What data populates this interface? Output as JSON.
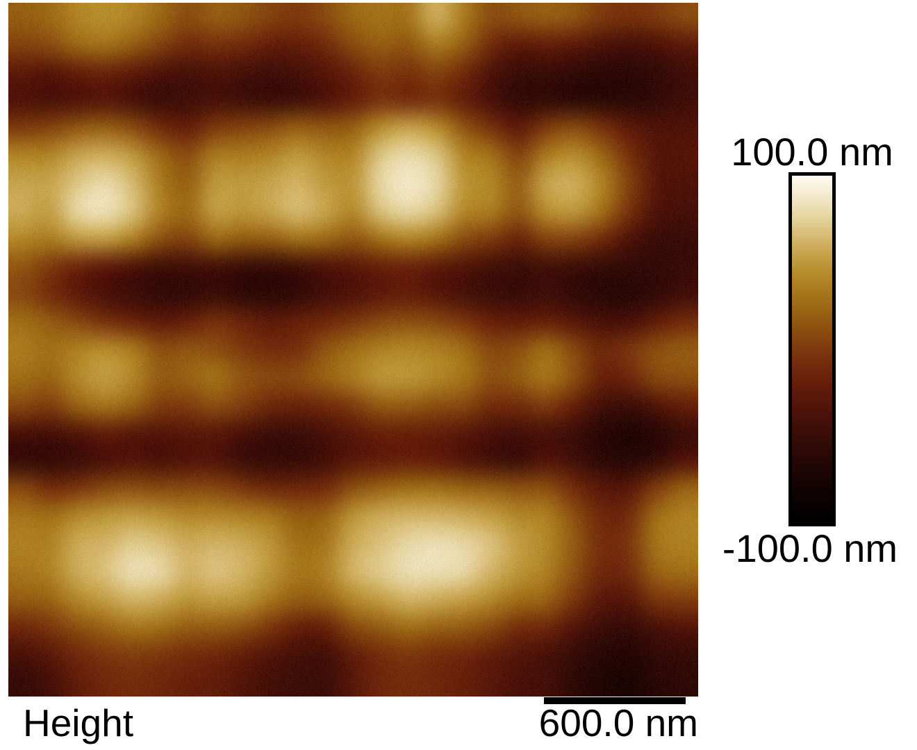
{
  "panel_label": "Height",
  "scale_bar": {
    "label": "600.0 nm",
    "length_nm": 600.0
  },
  "color_scale": {
    "max_label": "100.0 nm",
    "min_label": "-100.0 nm",
    "max": 100.0,
    "min": -100.0,
    "unit": "nm"
  },
  "chart_data": {
    "type": "heatmap",
    "title": "Height",
    "zlabel": "Height",
    "zunit": "nm",
    "zlim": [
      -100.0,
      100.0
    ],
    "scale_bar_nm": 600.0,
    "colorbar_position": "right",
    "colormap_stops": [
      {
        "t": 0.0,
        "color": "#000000"
      },
      {
        "t": 0.08,
        "color": "#0d0202"
      },
      {
        "t": 0.16,
        "color": "#200605"
      },
      {
        "t": 0.24,
        "color": "#360c07"
      },
      {
        "t": 0.32,
        "color": "#4c1209"
      },
      {
        "t": 0.4,
        "color": "#641e0a"
      },
      {
        "t": 0.48,
        "color": "#78320d"
      },
      {
        "t": 0.56,
        "color": "#8c5011"
      },
      {
        "t": 0.64,
        "color": "#a06f16"
      },
      {
        "t": 0.72,
        "color": "#b68c2a"
      },
      {
        "t": 0.8,
        "color": "#cfae5e"
      },
      {
        "t": 0.88,
        "color": "#e6d49e"
      },
      {
        "t": 0.95,
        "color": "#f5ecd3"
      },
      {
        "t": 1.0,
        "color": "#fdfbf1"
      }
    ],
    "grid": {
      "rows": 25,
      "cols": 25,
      "heights_nm": [
        [
          20,
          25,
          40,
          45,
          40,
          25,
          10,
          20,
          15,
          5,
          0,
          10,
          25,
          30,
          30,
          60,
          35,
          10,
          15,
          20,
          15,
          0,
          -5,
          0,
          10
        ],
        [
          5,
          10,
          25,
          30,
          20,
          5,
          -10,
          -5,
          -10,
          -20,
          -20,
          -10,
          10,
          20,
          15,
          35,
          20,
          -10,
          -25,
          -20,
          -25,
          -35,
          -40,
          -35,
          -25
        ],
        [
          -25,
          -30,
          -20,
          -15,
          -25,
          -35,
          -40,
          -35,
          -40,
          -45,
          -40,
          -30,
          -15,
          0,
          -5,
          5,
          -10,
          -35,
          -50,
          -50,
          -55,
          -60,
          -60,
          -55,
          -45
        ],
        [
          -35,
          -40,
          -35,
          -30,
          -40,
          -50,
          -45,
          -40,
          -45,
          -50,
          -45,
          -35,
          -20,
          -5,
          -10,
          -5,
          -20,
          -40,
          -55,
          -55,
          -60,
          -60,
          -60,
          -55,
          -45
        ],
        [
          0,
          5,
          15,
          20,
          10,
          -10,
          -20,
          0,
          5,
          10,
          20,
          15,
          20,
          45,
          55,
          45,
          15,
          -5,
          -25,
          0,
          10,
          -5,
          -25,
          -35,
          -35
        ],
        [
          40,
          40,
          55,
          60,
          50,
          25,
          10,
          35,
          35,
          40,
          50,
          40,
          40,
          70,
          80,
          70,
          40,
          30,
          5,
          35,
          45,
          25,
          -5,
          -30,
          -30
        ],
        [
          55,
          55,
          70,
          80,
          65,
          35,
          20,
          50,
          50,
          55,
          62,
          50,
          48,
          78,
          88,
          78,
          48,
          42,
          20,
          55,
          60,
          40,
          5,
          -30,
          -35
        ],
        [
          58,
          52,
          78,
          84,
          68,
          38,
          25,
          52,
          48,
          55,
          65,
          55,
          42,
          68,
          78,
          68,
          42,
          36,
          15,
          45,
          50,
          30,
          -5,
          -35,
          -40
        ],
        [
          42,
          35,
          50,
          52,
          38,
          12,
          5,
          25,
          18,
          20,
          30,
          25,
          15,
          30,
          40,
          30,
          10,
          0,
          -15,
          5,
          5,
          -10,
          -35,
          -50,
          -50
        ],
        [
          15,
          0,
          -15,
          -25,
          -35,
          -45,
          -45,
          -42,
          -50,
          -52,
          -45,
          -35,
          -28,
          -18,
          -15,
          -25,
          -32,
          -42,
          -48,
          -42,
          -48,
          -52,
          -55,
          -55,
          -50
        ],
        [
          8,
          -8,
          -25,
          -38,
          -48,
          -55,
          -55,
          -50,
          -58,
          -60,
          -55,
          -42,
          -35,
          -25,
          -20,
          -30,
          -40,
          -48,
          -52,
          -45,
          -55,
          -62,
          -62,
          -55,
          -45
        ],
        [
          28,
          18,
          8,
          -5,
          -15,
          -25,
          -18,
          -5,
          -15,
          -25,
          -18,
          -12,
          -2,
          8,
          12,
          8,
          -2,
          -18,
          -22,
          -18,
          -28,
          -38,
          -38,
          -22,
          -8
        ],
        [
          35,
          28,
          38,
          45,
          35,
          12,
          15,
          12,
          0,
          -8,
          -5,
          15,
          28,
          38,
          42,
          38,
          28,
          8,
          12,
          28,
          8,
          -12,
          -2,
          12,
          18
        ],
        [
          28,
          22,
          42,
          52,
          42,
          18,
          22,
          30,
          15,
          8,
          10,
          22,
          35,
          48,
          48,
          42,
          32,
          12,
          18,
          32,
          12,
          -18,
          -12,
          8,
          12
        ],
        [
          8,
          2,
          22,
          32,
          22,
          2,
          2,
          12,
          2,
          -12,
          -15,
          -10,
          2,
          18,
          18,
          12,
          8,
          -8,
          -8,
          2,
          -18,
          -42,
          -48,
          -32,
          -18
        ],
        [
          -38,
          -42,
          -32,
          -22,
          -28,
          -32,
          -28,
          -28,
          -38,
          -48,
          -48,
          -38,
          -28,
          -18,
          -18,
          -22,
          -28,
          -38,
          -42,
          -38,
          -48,
          -62,
          -68,
          -62,
          -48
        ],
        [
          -52,
          -55,
          -48,
          -38,
          -32,
          -38,
          -32,
          -32,
          -48,
          -52,
          -52,
          -42,
          -28,
          -22,
          -18,
          -22,
          -32,
          -42,
          -48,
          -32,
          -42,
          -58,
          -62,
          -52,
          -32
        ],
        [
          8,
          -8,
          -2,
          8,
          12,
          8,
          8,
          8,
          -2,
          -12,
          -12,
          -8,
          12,
          22,
          28,
          28,
          22,
          18,
          12,
          12,
          -8,
          -28,
          -28,
          2,
          22
        ],
        [
          32,
          28,
          42,
          48,
          52,
          48,
          42,
          42,
          38,
          32,
          18,
          22,
          48,
          58,
          62,
          62,
          58,
          52,
          42,
          38,
          12,
          -12,
          -8,
          28,
          38
        ],
        [
          38,
          38,
          58,
          62,
          72,
          68,
          58,
          62,
          58,
          48,
          28,
          32,
          58,
          68,
          78,
          82,
          78,
          68,
          52,
          42,
          18,
          -8,
          -2,
          32,
          38
        ],
        [
          32,
          38,
          58,
          68,
          82,
          78,
          62,
          68,
          62,
          48,
          32,
          38,
          62,
          72,
          82,
          82,
          78,
          62,
          48,
          38,
          12,
          -12,
          -8,
          22,
          28
        ],
        [
          18,
          22,
          42,
          52,
          62,
          58,
          48,
          52,
          48,
          32,
          18,
          22,
          42,
          52,
          62,
          58,
          52,
          42,
          28,
          22,
          -2,
          -28,
          -28,
          -2,
          2
        ],
        [
          -12,
          -2,
          12,
          22,
          32,
          28,
          18,
          18,
          12,
          -2,
          -18,
          -18,
          8,
          18,
          28,
          22,
          18,
          8,
          -8,
          -12,
          -32,
          -48,
          -52,
          -38,
          -32
        ],
        [
          -38,
          -28,
          -12,
          -2,
          2,
          -2,
          -8,
          -12,
          -22,
          -32,
          -42,
          -42,
          -22,
          -8,
          -2,
          -8,
          -12,
          -22,
          -32,
          -38,
          -52,
          -62,
          -65,
          -55,
          -52
        ],
        [
          -52,
          -42,
          -22,
          -12,
          -8,
          -12,
          -18,
          -22,
          -32,
          -42,
          -48,
          -48,
          -28,
          -12,
          -8,
          -12,
          -18,
          -28,
          -38,
          -42,
          -58,
          -68,
          -72,
          -62,
          -58
        ]
      ]
    }
  }
}
